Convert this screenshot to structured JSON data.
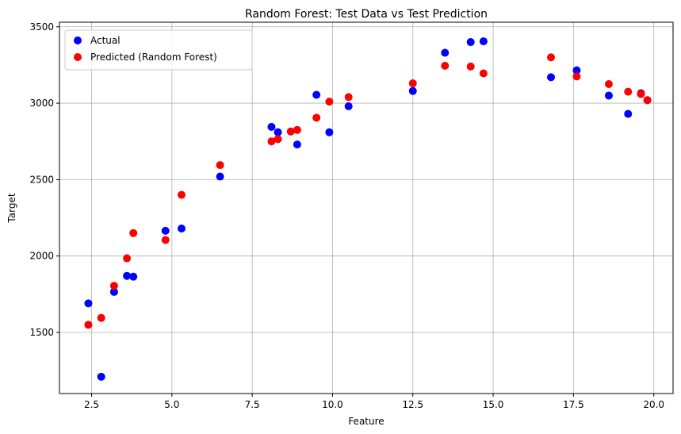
{
  "chart_data": {
    "type": "scatter",
    "title": "Random Forest: Test Data vs Test Prediction",
    "xlabel": "Feature",
    "ylabel": "Target",
    "xlim": [
      1.5,
      20.6
    ],
    "ylim": [
      1100,
      3530
    ],
    "x_ticks": [
      2.5,
      5.0,
      7.5,
      10.0,
      12.5,
      15.0,
      17.5,
      20.0
    ],
    "x_tick_labels": [
      "2.5",
      "5.0",
      "7.5",
      "10.0",
      "12.5",
      "15.0",
      "17.5",
      "20.0"
    ],
    "y_ticks": [
      1500,
      2000,
      2500,
      3000,
      3500
    ],
    "y_tick_labels": [
      "1500",
      "2000",
      "2500",
      "3000",
      "3500"
    ],
    "grid": true,
    "legend_position": "top-left",
    "series": [
      {
        "name": "Actual",
        "color": "#0000ff",
        "points": [
          [
            2.4,
            1690
          ],
          [
            2.8,
            1210
          ],
          [
            3.2,
            1765
          ],
          [
            3.6,
            1870
          ],
          [
            3.8,
            1865
          ],
          [
            4.8,
            2165
          ],
          [
            5.3,
            2180
          ],
          [
            6.5,
            2520
          ],
          [
            8.1,
            2845
          ],
          [
            8.3,
            2810
          ],
          [
            8.9,
            2730
          ],
          [
            9.5,
            3055
          ],
          [
            9.9,
            2810
          ],
          [
            10.5,
            2980
          ],
          [
            12.5,
            3080
          ],
          [
            13.5,
            3330
          ],
          [
            14.3,
            3400
          ],
          [
            14.7,
            3405
          ],
          [
            16.8,
            3170
          ],
          [
            17.6,
            3215
          ],
          [
            18.6,
            3050
          ],
          [
            19.2,
            2930
          ],
          [
            19.6,
            3065
          ],
          [
            19.8,
            3020
          ]
        ]
      },
      {
        "name": "Predicted (Random Forest)",
        "color": "#ff0000",
        "points": [
          [
            2.4,
            1550
          ],
          [
            2.8,
            1595
          ],
          [
            3.2,
            1805
          ],
          [
            3.6,
            1985
          ],
          [
            3.8,
            2150
          ],
          [
            4.8,
            2105
          ],
          [
            5.3,
            2400
          ],
          [
            6.5,
            2595
          ],
          [
            8.1,
            2750
          ],
          [
            8.3,
            2765
          ],
          [
            8.7,
            2815
          ],
          [
            8.9,
            2825
          ],
          [
            9.5,
            2905
          ],
          [
            9.9,
            3010
          ],
          [
            10.5,
            3040
          ],
          [
            12.5,
            3130
          ],
          [
            13.5,
            3245
          ],
          [
            14.3,
            3240
          ],
          [
            14.7,
            3195
          ],
          [
            16.8,
            3300
          ],
          [
            17.6,
            3175
          ],
          [
            18.6,
            3125
          ],
          [
            19.2,
            3075
          ],
          [
            19.6,
            3060
          ],
          [
            19.8,
            3020
          ]
        ]
      }
    ]
  }
}
